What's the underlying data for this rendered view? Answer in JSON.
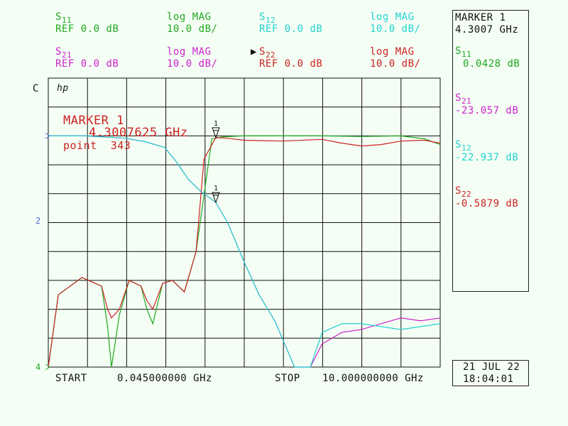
{
  "header": {
    "s11": {
      "name": "S",
      "sub": "11",
      "ref": "REF 0.0 dB",
      "fmt": "log MAG",
      "scale": "10.0 dB/"
    },
    "s12": {
      "name": "S",
      "sub": "12",
      "ref": "REF 0.0 dB",
      "fmt": "log MAG",
      "scale": "10.0 dB/"
    },
    "s21": {
      "name": "S",
      "sub": "21",
      "ref": "REF 0.0 dB",
      "fmt": "log MAG",
      "scale": "10.0 dB/"
    },
    "s22": {
      "name": "S",
      "sub": "22",
      "active": "▶",
      "ref": "REF 0.0 dB",
      "fmt": "log MAG",
      "scale": "10.0 dB/"
    }
  },
  "panel": {
    "marker_title": "MARKER 1",
    "marker_freq": "4.3007 GHz",
    "readouts": [
      {
        "name": "S",
        "sub": "11",
        "value": "0.0428 dB",
        "color": "#21a821"
      },
      {
        "name": "S",
        "sub": "21",
        "value": "-23.057 dB",
        "color": "#cc22cc"
      },
      {
        "name": "S",
        "sub": "12",
        "value": "-22.937 dB",
        "color": "#22d2d2"
      },
      {
        "name": "S",
        "sub": "22",
        "value": "-0.5879 dB",
        "color": "#cc2222"
      }
    ],
    "date": "21 JUL 22",
    "time": "18:04:01"
  },
  "plot": {
    "channel_label": "C",
    "hp_logo": "hp",
    "marker_overlay": {
      "title": "MARKER 1",
      "freq": "4.3007625 GHz",
      "point": "point  343"
    },
    "ref_marker_label": "2",
    "bottom_marker_label": "4",
    "marker_tick": "1"
  },
  "footer": {
    "start_label": "START",
    "start_value": "0.045000000 GHz",
    "stop_label": "STOP",
    "stop_value": "10.000000000 GHz"
  },
  "chart_data": {
    "type": "line",
    "x_unit": "GHz",
    "xlim": [
      0.045,
      10.0
    ],
    "ylim": [
      -80,
      20
    ],
    "y_ref": 0,
    "y_scale_per_div": 10,
    "grid": true,
    "marker": {
      "x": 4.3007625,
      "label": "1"
    },
    "series": [
      {
        "name": "S11",
        "color": "#21a821",
        "x": [
          0.045,
          0.3,
          0.9,
          1.4,
          1.55,
          1.65,
          1.85,
          2.1,
          2.4,
          2.55,
          2.7,
          2.95,
          3.2,
          3.5,
          3.8,
          4.2,
          4.5,
          5.0,
          6.0,
          7.0,
          8.0,
          9.0,
          9.6,
          10.0
        ],
        "y": [
          -80,
          -55,
          -49,
          -52,
          -66,
          -80,
          -62,
          -50,
          -52,
          -60,
          -65,
          -51,
          -50,
          -54,
          -40,
          -1,
          -0.3,
          0,
          0,
          0,
          -0.2,
          0,
          -1,
          -3
        ]
      },
      {
        "name": "S22",
        "color": "#cc2222",
        "x": [
          0.045,
          0.3,
          0.9,
          1.4,
          1.55,
          1.65,
          1.85,
          2.1,
          2.4,
          2.55,
          2.7,
          2.95,
          3.2,
          3.5,
          3.8,
          4.0,
          4.3,
          4.6,
          5.0,
          6.0,
          7.0,
          7.5,
          8.0,
          8.5,
          9.0,
          9.6,
          10.0
        ],
        "y": [
          -80,
          -55,
          -49,
          -52,
          -60,
          -63,
          -60,
          -50,
          -52,
          -57,
          -60,
          -51,
          -50,
          -54,
          -40,
          -8,
          -0.6,
          -0.8,
          -1.5,
          -1.8,
          -1.2,
          -2.5,
          -3.5,
          -3,
          -1.8,
          -1.5,
          -2.5
        ]
      },
      {
        "name": "S21",
        "color": "#cc22cc",
        "x": [
          0.045,
          1.0,
          2.0,
          2.5,
          3.0,
          3.3,
          3.6,
          3.9,
          4.3,
          4.6,
          5.0,
          5.4,
          5.8,
          6.3,
          6.7,
          7.0,
          7.5,
          8.0,
          8.5,
          9.0,
          9.5,
          10.0
        ],
        "y": [
          0,
          0,
          -0.8,
          -2,
          -4,
          -9,
          -15,
          -19,
          -23,
          -30,
          -43,
          -55,
          -64,
          -85,
          -85,
          -72,
          -68,
          -67,
          -65,
          -63,
          -64,
          -63
        ]
      },
      {
        "name": "S12",
        "color": "#22d2d2",
        "x": [
          0.045,
          1.0,
          2.0,
          2.5,
          3.0,
          3.3,
          3.6,
          3.9,
          4.3,
          4.6,
          5.0,
          5.4,
          5.8,
          6.3,
          6.7,
          7.0,
          7.5,
          8.0,
          8.5,
          9.0,
          9.5,
          10.0
        ],
        "y": [
          0,
          0,
          -0.8,
          -2,
          -4,
          -9,
          -15,
          -19,
          -23,
          -30,
          -43,
          -55,
          -64,
          -85,
          -85,
          -68,
          -65,
          -65,
          -66,
          -67,
          -66,
          -65
        ]
      }
    ]
  }
}
